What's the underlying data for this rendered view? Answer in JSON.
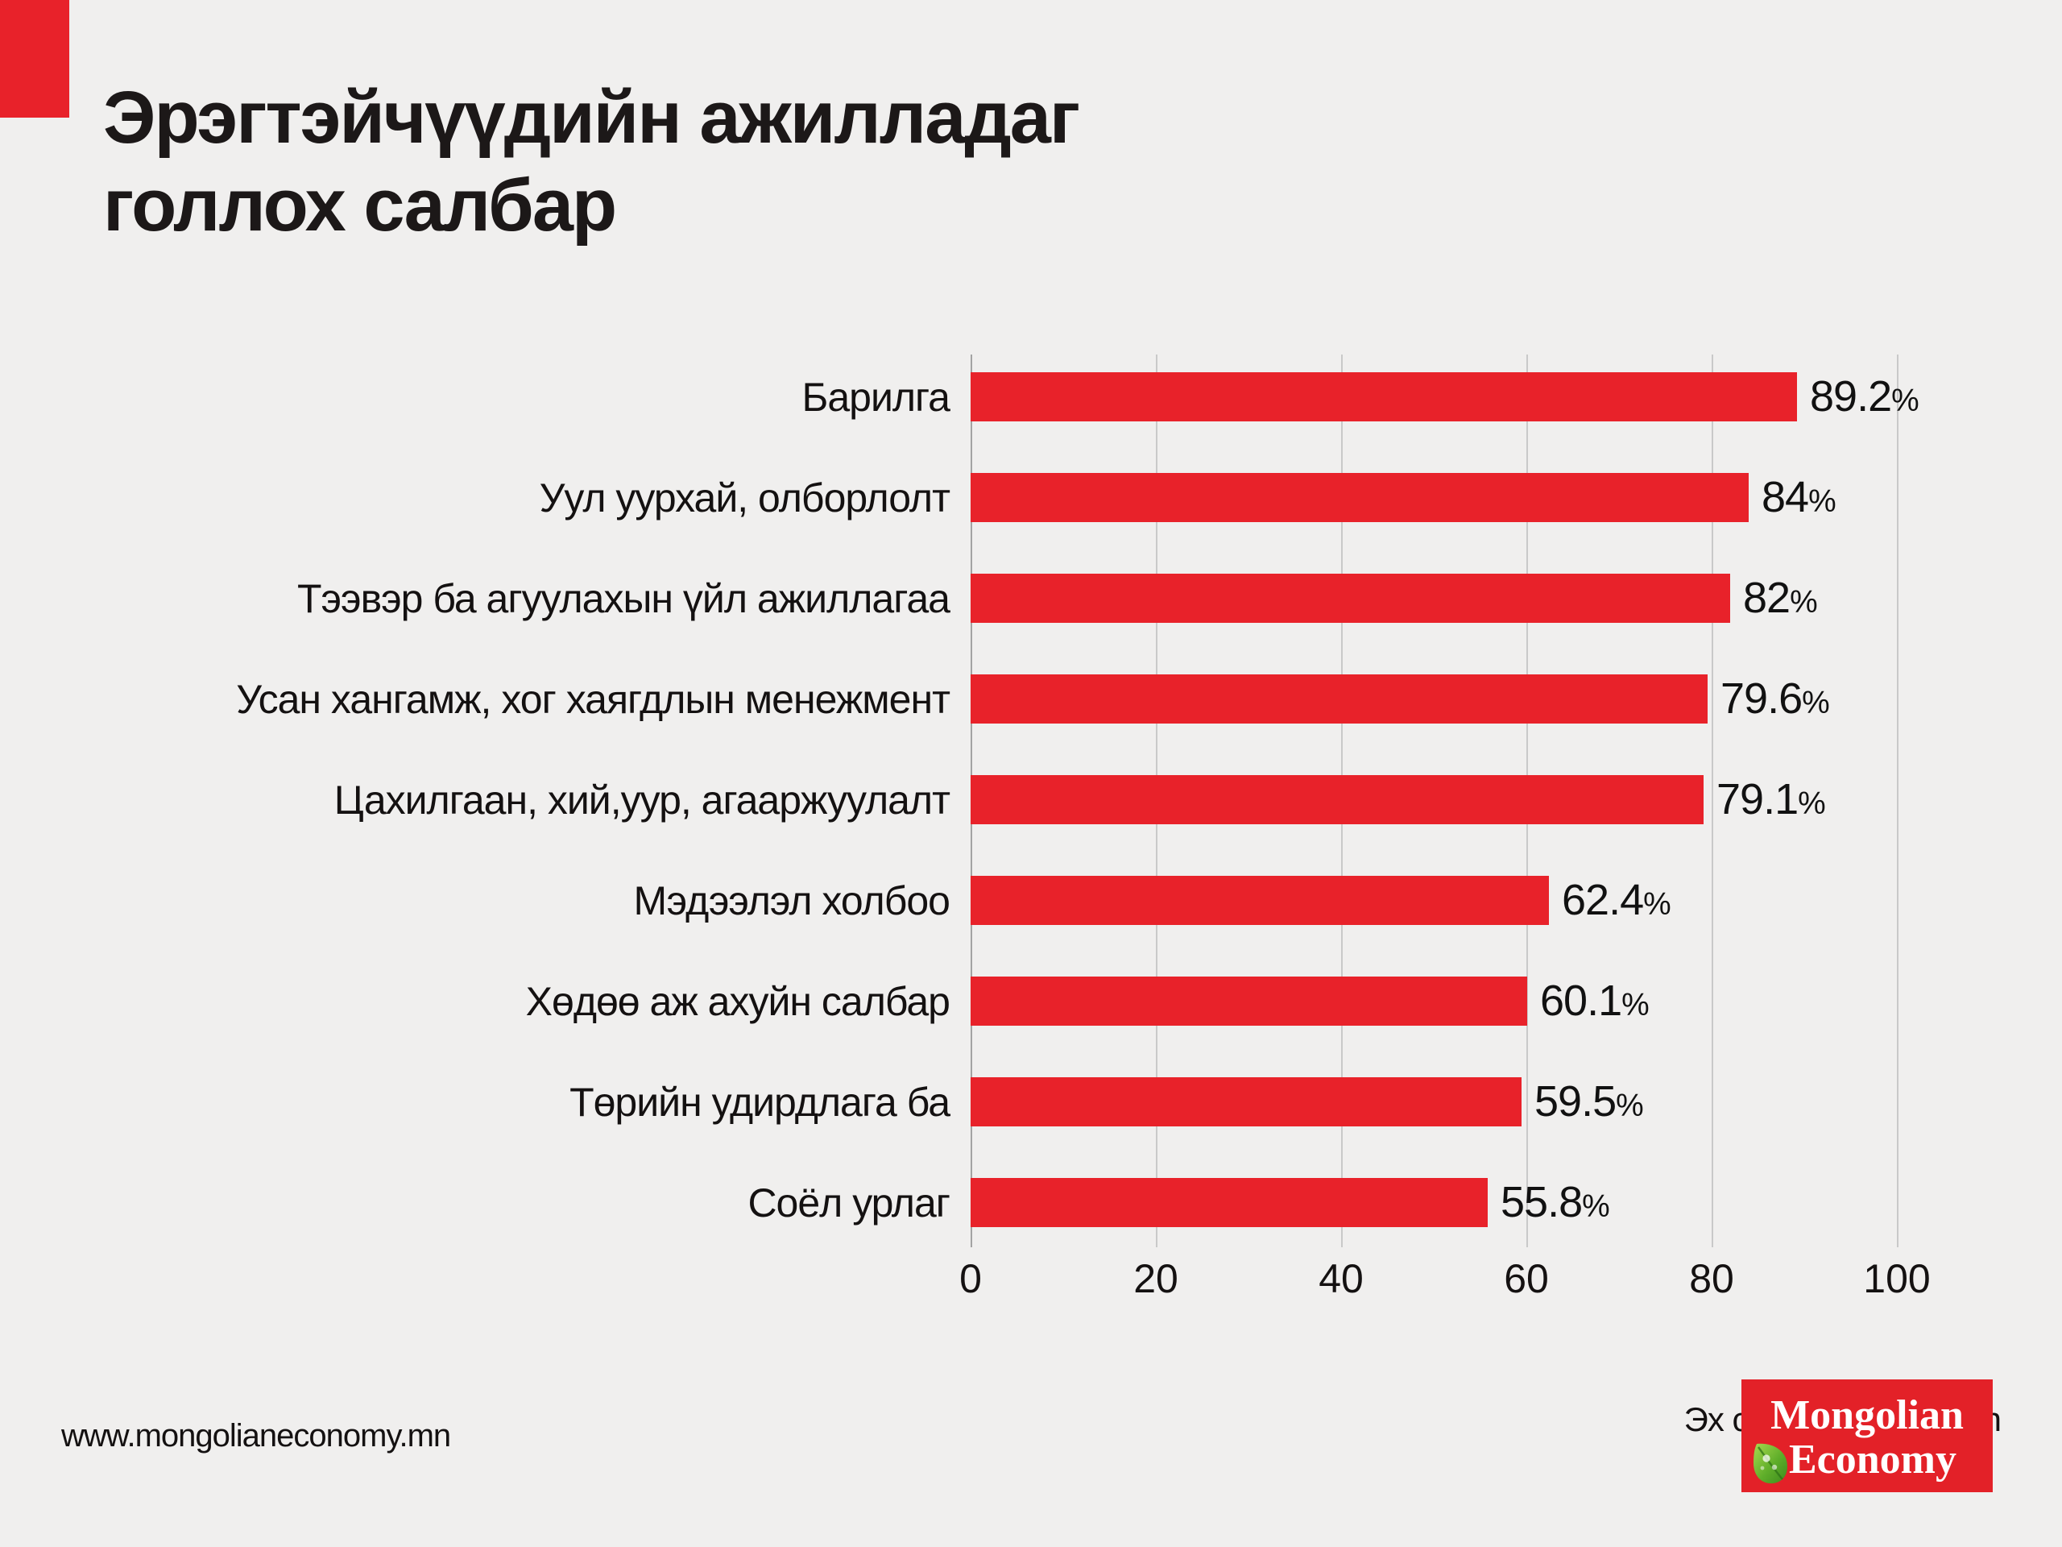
{
  "header": {
    "title_line1": "Эрэгтэйчүүдийн ажилладаг",
    "title_line2": "голлох салбар"
  },
  "footer": {
    "source": "Эх сурвалж: 1212.mn",
    "website": "www.mongolianeconomy.mn",
    "logo_line1": "Mongolian",
    "logo_line2": "Economy",
    "logo_icon": "leaf-icon"
  },
  "colors": {
    "background": "#f0efee",
    "bar_red": "#e8222a",
    "logo_red": "#e32128",
    "gridline": "#c9c9c9",
    "axis_line": "#a3a3a3",
    "text": "#171313"
  },
  "chart_data": {
    "type": "bar",
    "orientation": "horizontal",
    "title": "Эрэгтэйчүүдийн ажилладаг голлох салбар",
    "categories": [
      "Барилга",
      "Уул уурхай, олборлолт",
      "Тээвэр ба агуулахын үйл ажиллагаа",
      "Усан хангамж, хог хаягдлын менежмент",
      "Цахилгаан, хий,уур, агааржуулалт",
      "Мэдээлэл холбоо",
      "Хөдөө аж ахуйн салбар",
      "Төрийн удирдлага ба",
      "Соёл урлаг"
    ],
    "values": [
      89.2,
      84,
      82,
      79.6,
      79.1,
      62.4,
      60.1,
      59.5,
      55.8
    ],
    "value_labels": [
      "89.2%",
      "84%",
      "82%",
      "79.6%",
      "79.1%",
      "62.4%",
      "60.1%",
      "59.5%",
      "55.8%"
    ],
    "unit": "%",
    "x_ticks": [
      0,
      20,
      40,
      60,
      80,
      100
    ],
    "xlim": [
      0,
      100
    ],
    "grid": true,
    "legend": false,
    "bar_color": "#e8222a"
  }
}
